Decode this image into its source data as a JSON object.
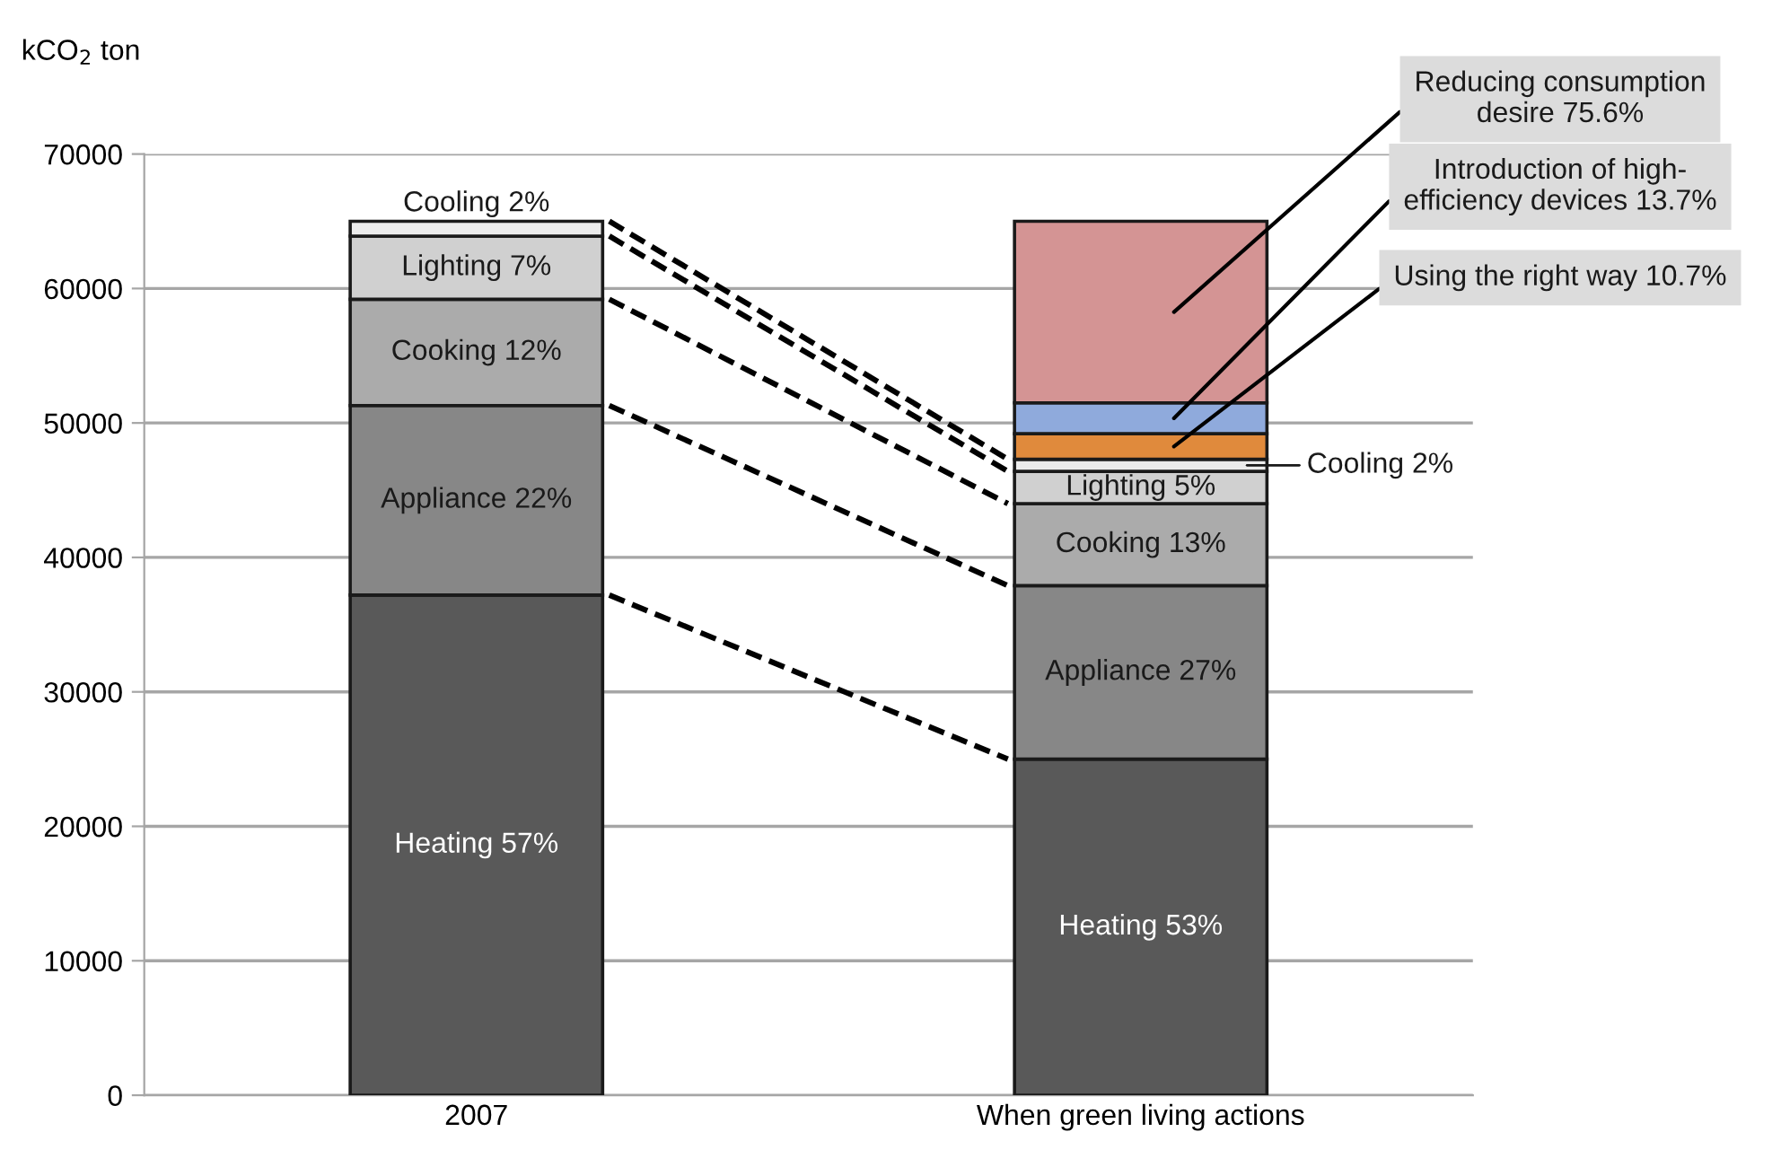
{
  "chart_data": {
    "type": "bar",
    "stacked": true,
    "ylabel": "kCO$_{2}$ ton",
    "categories": [
      "2007",
      "When green living actions"
    ],
    "ylim": [
      0,
      70000
    ],
    "yticks": [
      0,
      10000,
      20000,
      30000,
      40000,
      50000,
      60000,
      70000
    ],
    "grid": "y",
    "legend": false,
    "series": [
      {
        "color": "#595959",
        "values": [
          37200,
          25000
        ],
        "value_labels": [
          "Heating 57%",
          "Heating 53%"
        ]
      },
      {
        "color": "#878787",
        "values": [
          14100,
          12900
        ],
        "value_labels": [
          "Appliance 22%",
          "Appliance 27%"
        ]
      },
      {
        "color": "#ababab",
        "values": [
          7900,
          6100
        ],
        "value_labels": [
          "Cooking 12%",
          "Cooking 13%"
        ]
      },
      {
        "color": "#d0d0d0",
        "values": [
          4700,
          2400
        ],
        "value_labels": [
          "Lighting 7%",
          "Lighting 5%"
        ]
      },
      {
        "color": "#ececec",
        "values": [
          1100,
          900
        ],
        "value_labels": [
          "Cooling 2%",
          "Cooling 2%"
        ]
      },
      {
        "color": "#e08a3c",
        "values": [
          null,
          1900
        ],
        "value_labels": [
          null,
          "Using the right way 10.7%"
        ]
      },
      {
        "color": "#8faadc",
        "values": [
          null,
          2300
        ],
        "value_labels": [
          null,
          "Introduction of high-\nefficiency devices 13.7%"
        ]
      },
      {
        "color": "#d49494",
        "values": [
          null,
          13500
        ],
        "value_labels": [
          null,
          "Reducing consumption\ndesire 75.6%"
        ]
      }
    ]
  }
}
